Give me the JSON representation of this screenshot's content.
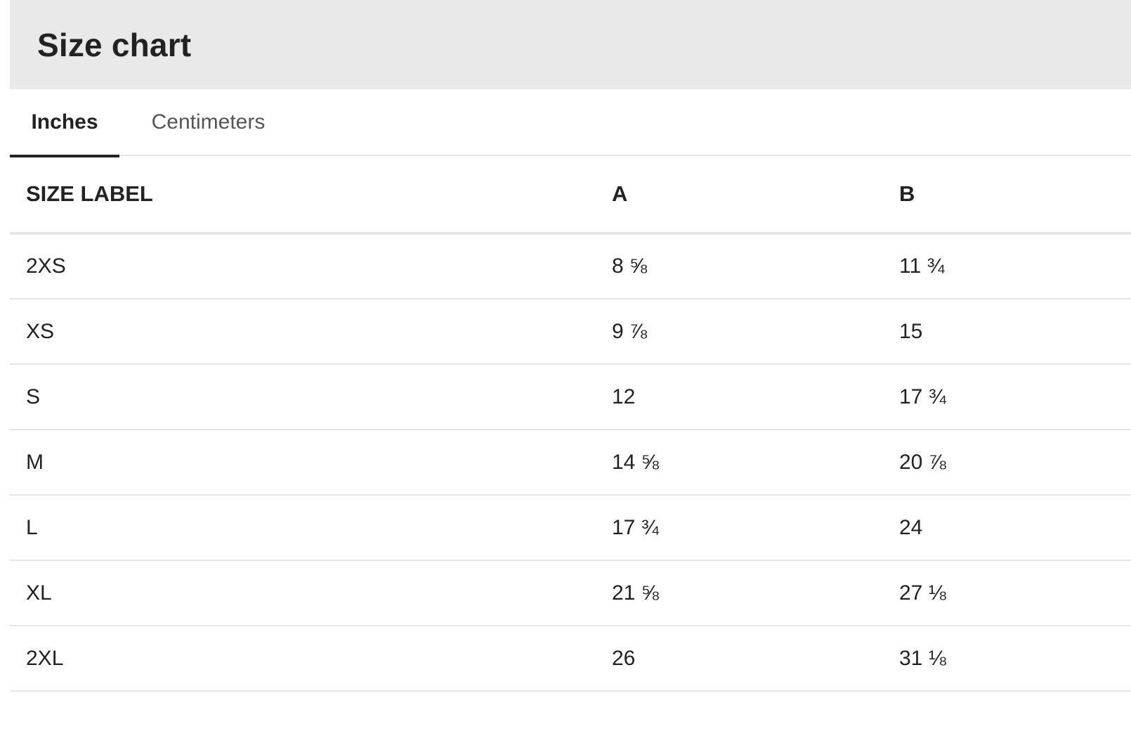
{
  "header": {
    "title": "Size chart"
  },
  "tabs": [
    {
      "label": "Inches",
      "active": true
    },
    {
      "label": "Centimeters",
      "active": false
    }
  ],
  "table": {
    "columns": [
      "SIZE LABEL",
      "A",
      "B"
    ],
    "rows": [
      [
        "2XS",
        "8 ⅝",
        "11 ¾"
      ],
      [
        "XS",
        "9 ⅞",
        "15"
      ],
      [
        "S",
        "12",
        "17 ¾"
      ],
      [
        "M",
        "14 ⅝",
        "20 ⅞"
      ],
      [
        "L",
        "17 ¾",
        "24"
      ],
      [
        "XL",
        "21 ⅝",
        "27 ⅛"
      ],
      [
        "2XL",
        "26",
        "31 ⅛"
      ]
    ]
  },
  "colors": {
    "header_background": "#e9e9e9",
    "text": "#222222",
    "inactive_tab_text": "#555555",
    "divider": "#e6e6e6",
    "active_tab_underline": "#222222"
  }
}
